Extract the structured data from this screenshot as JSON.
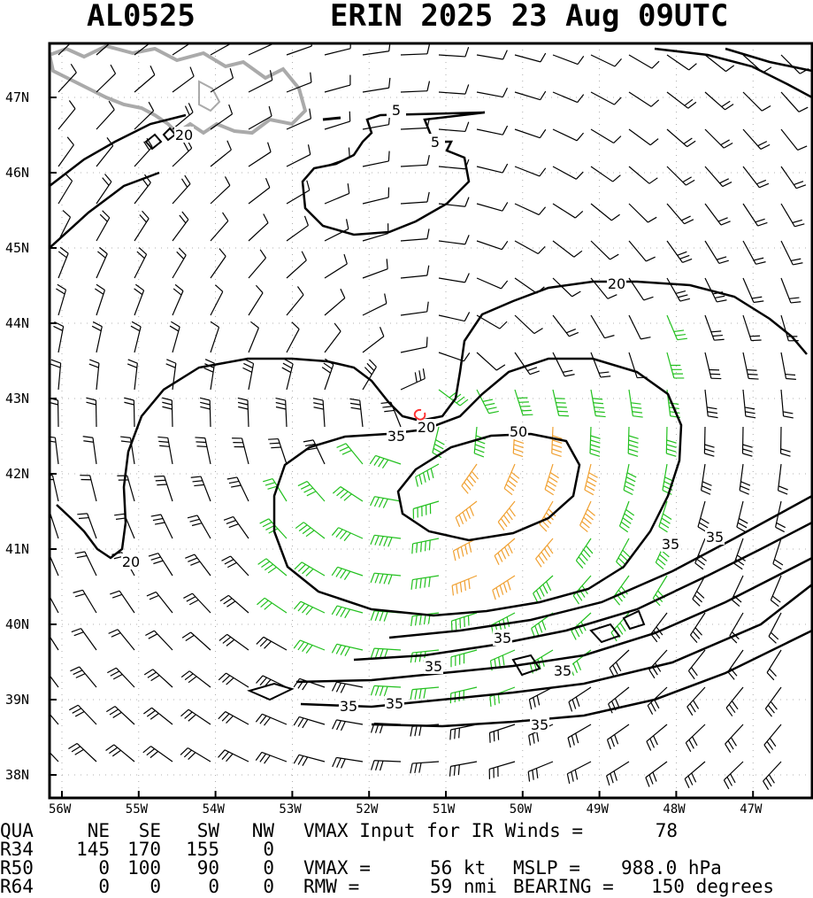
{
  "header": {
    "storm_id": "AL0525",
    "storm_info": "ERIN 2025 23 Aug 09UTC"
  },
  "map": {
    "lat_labels": [
      "47N",
      "46N",
      "45N",
      "44N",
      "43N",
      "42N",
      "41N",
      "40N",
      "39N",
      "38N"
    ],
    "lon_labels": [
      "56W",
      "55W",
      "54W",
      "53W",
      "52W",
      "51W",
      "50W",
      "49W",
      "48W",
      "47W"
    ],
    "center_lon": -51.4,
    "center_lat": 42.7,
    "contour_labels": [
      "5",
      "5",
      "20",
      "20",
      "20",
      "20",
      "35",
      "35",
      "35",
      "35",
      "35",
      "35",
      "35",
      "35",
      "35",
      "50"
    ],
    "colors": {
      "wind_low": "#000000",
      "wind_34": "#22c01e",
      "wind_50": "#f0a030",
      "wind_64": "#e8601a",
      "land": "#aaaaaa",
      "center": "#ff3030"
    }
  },
  "table": {
    "row_labels": [
      "QUA",
      "R34",
      "R50",
      "R64"
    ],
    "col_headers": [
      "NE",
      "SE",
      "SW",
      "NW"
    ],
    "r34": [
      "145",
      "170",
      "155",
      "0"
    ],
    "r50": [
      "0",
      "100",
      "90",
      "0"
    ],
    "r64": [
      "0",
      "0",
      "0",
      "0"
    ]
  },
  "stats": {
    "vmax_input_label": "VMAX Input for IR Winds =",
    "vmax_input_value": "78",
    "vmax_label": "VMAX =",
    "vmax_value": "56 kt",
    "mslp_label": "MSLP =",
    "mslp_value": "988.0 hPa",
    "rmw_label": "RMW =",
    "rmw_value": "59 nmi",
    "bearing_label": "BEARING =",
    "bearing_value": "150 degrees"
  }
}
